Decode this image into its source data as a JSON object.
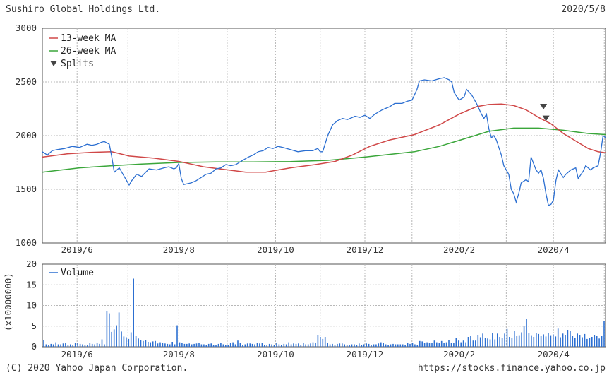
{
  "header": {
    "title": "Sushiro Global Holdings Ltd.",
    "date": "2020/5/8"
  },
  "footer": {
    "copyright": "(C) 2020 Yahoo Japan Corporation.",
    "url": "https://stocks.finance.yahoo.co.jp"
  },
  "chart_data": [
    {
      "type": "line",
      "ylim": [
        1000,
        3000
      ],
      "yticks": [
        1000,
        1500,
        2000,
        2500,
        3000
      ],
      "xlim": [
        0,
        227
      ],
      "xticks": [
        {
          "label": "2019/6",
          "x": 14
        },
        {
          "label": "2019/8",
          "x": 55
        },
        {
          "label": "2019/10",
          "x": 94
        },
        {
          "label": "2019/12",
          "x": 130
        },
        {
          "label": "2020/2",
          "x": 168
        },
        {
          "label": "2020/4",
          "x": 206
        }
      ],
      "grid": true,
      "legend_position": "top-left",
      "series": [
        {
          "name": "Price",
          "color": "#2c6fd1",
          "points": [
            [
              0,
              1850
            ],
            [
              2,
              1820
            ],
            [
              4,
              1860
            ],
            [
              6,
              1870
            ],
            [
              9,
              1880
            ],
            [
              12,
              1900
            ],
            [
              15,
              1890
            ],
            [
              18,
              1920
            ],
            [
              20,
              1910
            ],
            [
              22,
              1920
            ],
            [
              24,
              1940
            ],
            [
              25,
              1945
            ],
            [
              27,
              1920
            ],
            [
              28,
              1800
            ],
            [
              29,
              1660
            ],
            [
              31,
              1700
            ],
            [
              33,
              1620
            ],
            [
              35,
              1540
            ],
            [
              36,
              1580
            ],
            [
              38,
              1640
            ],
            [
              40,
              1620
            ],
            [
              43,
              1690
            ],
            [
              46,
              1680
            ],
            [
              49,
              1700
            ],
            [
              51,
              1710
            ],
            [
              53,
              1690
            ],
            [
              54,
              1700
            ],
            [
              55,
              1740
            ],
            [
              56,
              1600
            ],
            [
              57,
              1545
            ],
            [
              60,
              1560
            ],
            [
              62,
              1580
            ],
            [
              64,
              1610
            ],
            [
              66,
              1640
            ],
            [
              68,
              1650
            ],
            [
              70,
              1690
            ],
            [
              72,
              1700
            ],
            [
              74,
              1730
            ],
            [
              76,
              1720
            ],
            [
              78,
              1730
            ],
            [
              80,
              1760
            ],
            [
              83,
              1800
            ],
            [
              85,
              1820
            ],
            [
              87,
              1850
            ],
            [
              89,
              1860
            ],
            [
              91,
              1890
            ],
            [
              93,
              1880
            ],
            [
              95,
              1900
            ],
            [
              97,
              1890
            ],
            [
              100,
              1870
            ],
            [
              103,
              1850
            ],
            [
              106,
              1860
            ],
            [
              109,
              1860
            ],
            [
              111,
              1880
            ],
            [
              112,
              1850
            ],
            [
              113,
              1850
            ],
            [
              115,
              2000
            ],
            [
              117,
              2100
            ],
            [
              119,
              2140
            ],
            [
              121,
              2160
            ],
            [
              123,
              2150
            ],
            [
              126,
              2180
            ],
            [
              128,
              2170
            ],
            [
              130,
              2190
            ],
            [
              132,
              2160
            ],
            [
              134,
              2200
            ],
            [
              137,
              2240
            ],
            [
              140,
              2270
            ],
            [
              142,
              2300
            ],
            [
              145,
              2300
            ],
            [
              147,
              2320
            ],
            [
              149,
              2330
            ],
            [
              151,
              2430
            ],
            [
              152,
              2510
            ],
            [
              154,
              2520
            ],
            [
              157,
              2510
            ],
            [
              160,
              2530
            ],
            [
              162,
              2540
            ],
            [
              164,
              2520
            ],
            [
              165,
              2500
            ],
            [
              166,
              2400
            ],
            [
              168,
              2330
            ],
            [
              170,
              2360
            ],
            [
              171,
              2430
            ],
            [
              173,
              2380
            ],
            [
              174,
              2340
            ],
            [
              175,
              2300
            ],
            [
              177,
              2200
            ],
            [
              178,
              2160
            ],
            [
              179,
              2200
            ],
            [
              180,
              2060
            ],
            [
              181,
              1980
            ],
            [
              182,
              2000
            ],
            [
              183,
              1960
            ],
            [
              185,
              1820
            ],
            [
              186,
              1720
            ],
            [
              188,
              1640
            ],
            [
              189,
              1500
            ],
            [
              190,
              1460
            ],
            [
              191,
              1380
            ],
            [
              192,
              1460
            ],
            [
              193,
              1560
            ],
            [
              195,
              1590
            ],
            [
              196,
              1570
            ],
            [
              197,
              1800
            ],
            [
              199,
              1680
            ],
            [
              200,
              1650
            ],
            [
              201,
              1680
            ],
            [
              202,
              1600
            ],
            [
              203,
              1460
            ],
            [
              204,
              1350
            ],
            [
              205,
              1360
            ],
            [
              206,
              1400
            ],
            [
              207,
              1580
            ],
            [
              208,
              1680
            ],
            [
              210,
              1610
            ],
            [
              211,
              1640
            ],
            [
              213,
              1680
            ],
            [
              215,
              1700
            ],
            [
              216,
              1600
            ],
            [
              218,
              1670
            ],
            [
              219,
              1720
            ],
            [
              221,
              1680
            ],
            [
              222,
              1700
            ],
            [
              224,
              1720
            ],
            [
              225,
              1840
            ],
            [
              226,
              2000
            ],
            [
              227,
              1980
            ]
          ]
        },
        {
          "name": "13-week MA",
          "color": "#d04848",
          "points": [
            [
              0,
              1800
            ],
            [
              10,
              1830
            ],
            [
              20,
              1845
            ],
            [
              28,
              1850
            ],
            [
              35,
              1810
            ],
            [
              45,
              1790
            ],
            [
              55,
              1760
            ],
            [
              65,
              1710
            ],
            [
              75,
              1680
            ],
            [
              82,
              1660
            ],
            [
              90,
              1660
            ],
            [
              100,
              1700
            ],
            [
              110,
              1730
            ],
            [
              118,
              1760
            ],
            [
              125,
              1820
            ],
            [
              132,
              1900
            ],
            [
              140,
              1960
            ],
            [
              150,
              2010
            ],
            [
              160,
              2100
            ],
            [
              168,
              2200
            ],
            [
              175,
              2270
            ],
            [
              180,
              2290
            ],
            [
              185,
              2295
            ],
            [
              190,
              2280
            ],
            [
              195,
              2240
            ],
            [
              200,
              2170
            ],
            [
              205,
              2110
            ],
            [
              210,
              2020
            ],
            [
              215,
              1950
            ],
            [
              220,
              1880
            ],
            [
              224,
              1850
            ],
            [
              227,
              1840
            ]
          ]
        },
        {
          "name": "26-week MA",
          "color": "#3aa63a",
          "points": [
            [
              0,
              1660
            ],
            [
              15,
              1700
            ],
            [
              28,
              1720
            ],
            [
              40,
              1735
            ],
            [
              55,
              1750
            ],
            [
              70,
              1755
            ],
            [
              85,
              1755
            ],
            [
              100,
              1758
            ],
            [
              115,
              1770
            ],
            [
              130,
              1800
            ],
            [
              150,
              1850
            ],
            [
              160,
              1900
            ],
            [
              170,
              1970
            ],
            [
              180,
              2040
            ],
            [
              190,
              2070
            ],
            [
              200,
              2070
            ],
            [
              210,
              2050
            ],
            [
              220,
              2020
            ],
            [
              227,
              2010
            ]
          ]
        }
      ],
      "split_markers": [
        {
          "x": 202,
          "y": 2270
        },
        {
          "x": 203,
          "y": 2160
        }
      ],
      "legend": [
        "13-week MA",
        "26-week MA",
        "Splits"
      ]
    },
    {
      "type": "bar",
      "ylabel": "(x10000000)",
      "ylim": [
        0,
        20
      ],
      "yticks": [
        0,
        5,
        10,
        15,
        20
      ],
      "legend": [
        "Volume"
      ],
      "series": [
        {
          "name": "Volume",
          "color": "#2c6fd1"
        }
      ],
      "volume_values": [
        1.7,
        0.6,
        0.5,
        0.7,
        0.6,
        1.1,
        0.6,
        0.6,
        0.8,
        0.9,
        0.5,
        0.6,
        0.5,
        0.9,
        1.0,
        0.7,
        0.6,
        0.5,
        0.5,
        0.9,
        0.7,
        0.6,
        0.9,
        0.7,
        1.8,
        0.6,
        8.6,
        8.1,
        3.6,
        4.2,
        5.2,
        8.3,
        3.7,
        2.5,
        2.3,
        1.9,
        3.5,
        16.5,
        2.7,
        2.0,
        1.6,
        1.4,
        1.6,
        1.2,
        1.1,
        1.3,
        1.4,
        0.8,
        1.1,
        0.9,
        0.8,
        0.7,
        0.6,
        1.2,
        0.6,
        5.2,
        1.1,
        0.9,
        0.7,
        0.7,
        0.8,
        0.6,
        0.7,
        0.8,
        1.0,
        0.6,
        0.6,
        0.5,
        0.7,
        0.8,
        0.5,
        0.5,
        0.7,
        1.0,
        0.6,
        0.5,
        0.5,
        0.9,
        1.1,
        0.6,
        1.5,
        0.9,
        0.5,
        0.6,
        0.8,
        0.8,
        0.7,
        0.6,
        0.9,
        0.8,
        0.9,
        0.5,
        0.5,
        0.7,
        0.6,
        0.5,
        0.9,
        0.6,
        0.5,
        0.7,
        0.6,
        1.1,
        0.6,
        0.8,
        0.7,
        0.8,
        0.5,
        0.9,
        0.6,
        0.6,
        0.8,
        1.1,
        0.9,
        2.9,
        2.4,
        1.9,
        2.4,
        1.0,
        0.6,
        0.7,
        0.5,
        0.7,
        0.8,
        0.8,
        0.6,
        0.5,
        0.5,
        0.6,
        0.6,
        0.5,
        0.8,
        0.5,
        0.6,
        0.8,
        0.7,
        0.5,
        0.6,
        0.6,
        0.8,
        1.1,
        0.9,
        0.6,
        0.5,
        0.6,
        0.7,
        0.6,
        0.6,
        0.6,
        0.6,
        0.5,
        0.9,
        0.7,
        0.9,
        0.6,
        0.5,
        1.4,
        1.3,
        1.0,
        1.1,
        1.0,
        0.9,
        1.5,
        1.1,
        1.0,
        1.4,
        0.9,
        1.1,
        1.6,
        0.9,
        1.0,
        2.1,
        1.5,
        1.1,
        1.5,
        1.1,
        2.4,
        2.6,
        1.5,
        1.5,
        2.9,
        2.3,
        3.2,
        2.2,
        2.0,
        1.8,
        3.4,
        1.8,
        3.2,
        2.4,
        2.2,
        3.2,
        4.3,
        2.4,
        2.1,
        3.8,
        2.7,
        2.8,
        3.5,
        5.1,
        6.8,
        3.3,
        2.8,
        2.4,
        3.4,
        3.1,
        2.7,
        3.0,
        2.5,
        3.4,
        2.8,
        3.0,
        2.5,
        4.4,
        2.3,
        3.2,
        2.9,
        4.1,
        3.8,
        2.6,
        2.2,
        3.2,
        2.9,
        2.3,
        3.1,
        1.9,
        2.1,
        2.4,
        2.9,
        2.6,
        2.0,
        2.7,
        6.3
      ]
    }
  ]
}
